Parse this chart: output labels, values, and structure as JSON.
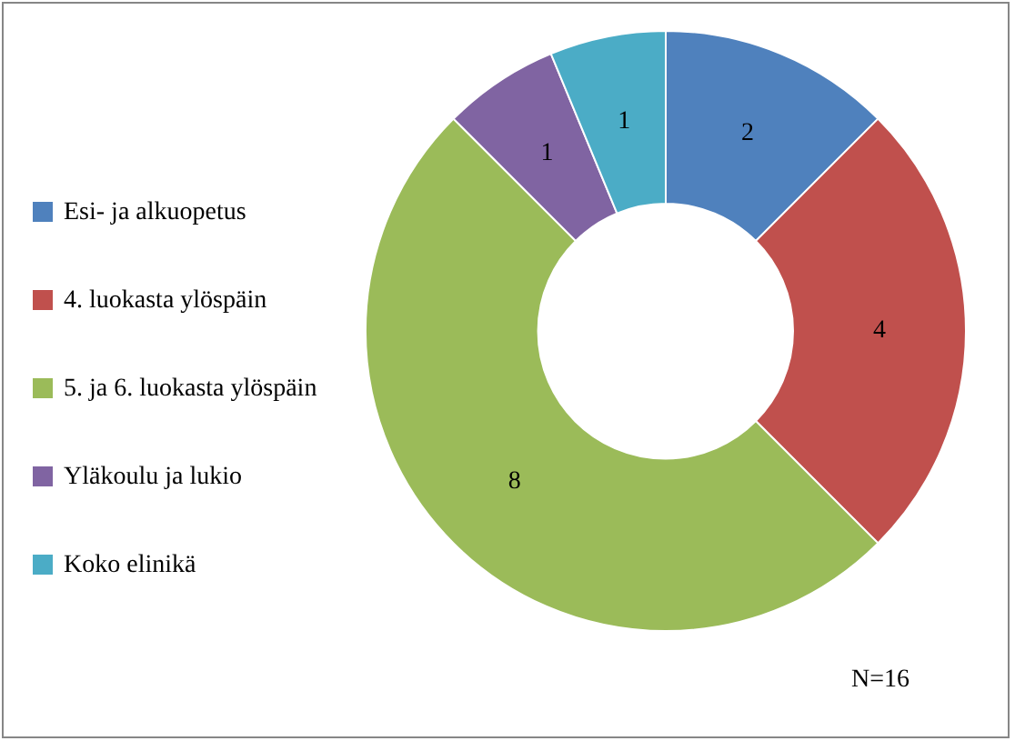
{
  "chart_data": {
    "type": "donut",
    "categories": [
      "Esi- ja alkuopetus",
      "4. luokasta ylöspäin",
      "5. ja 6. luokasta ylöspäin",
      "Yläkoulu ja lukio",
      "Koko elinikä"
    ],
    "values": [
      2,
      4,
      8,
      1,
      1
    ],
    "colors": [
      "#4f81bd",
      "#c0504d",
      "#9bbb59",
      "#8064a2",
      "#4bacc6"
    ],
    "data_labels": true,
    "legend": "left",
    "annotations": [
      "N=16"
    ]
  }
}
